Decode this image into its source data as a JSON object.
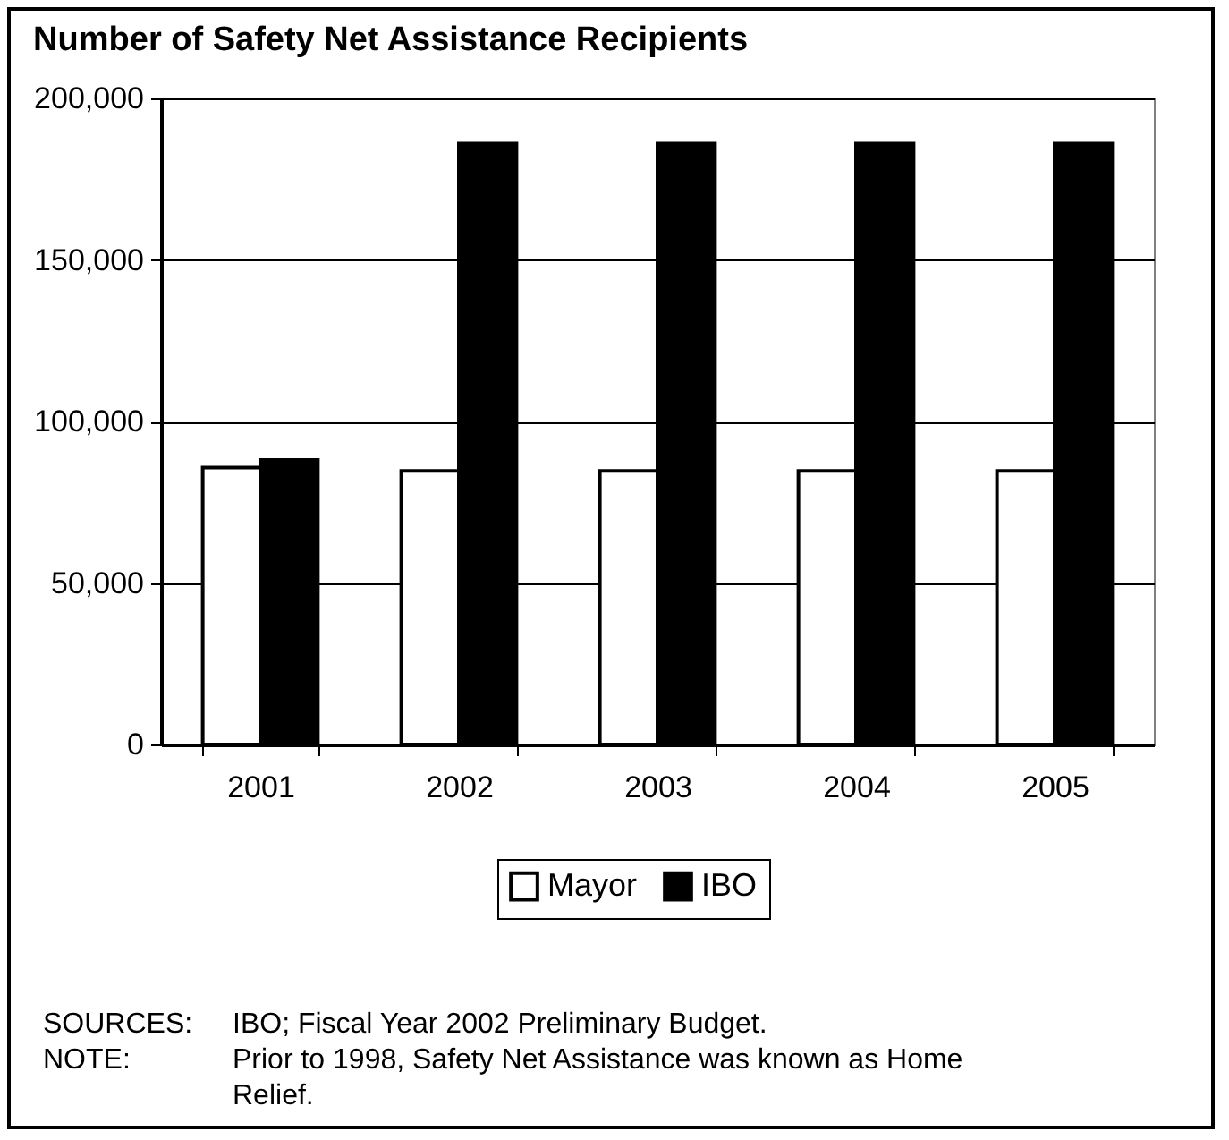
{
  "chart_data": {
    "type": "bar",
    "title": "Number of Safety Net Assistance Recipients",
    "categories": [
      "2001",
      "2002",
      "2003",
      "2004",
      "2005"
    ],
    "series": [
      {
        "name": "Mayor",
        "color": "#ffffff",
        "values": [
          85700,
          84700,
          84700,
          84700,
          84700
        ]
      },
      {
        "name": "IBO",
        "color": "#000000",
        "values": [
          88100,
          186000,
          186000,
          186000,
          186000
        ]
      }
    ],
    "ylim": [
      0,
      200000
    ],
    "yticks": [
      0,
      {
        "value": 50000,
        "label": "50,000"
      },
      {
        "value": 100000,
        "label": "100,000"
      },
      {
        "value": 150000,
        "label": "150,000"
      },
      {
        "value": 200000,
        "label": "200,000"
      }
    ],
    "grid": "y",
    "legend": "bottom",
    "annotations": [
      "SOURCES: IBO; Fiscal Year 2002 Preliminary Budget.",
      "NOTE: Prior to 1998, Safety Net Assistance was known as Home Relief."
    ]
  }
}
